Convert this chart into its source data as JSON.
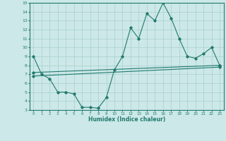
{
  "title": "",
  "xlabel": "Humidex (Indice chaleur)",
  "xlim": [
    -0.5,
    23.5
  ],
  "ylim": [
    3,
    15
  ],
  "xticks": [
    0,
    1,
    2,
    3,
    4,
    5,
    6,
    7,
    8,
    9,
    10,
    11,
    12,
    13,
    14,
    15,
    16,
    17,
    18,
    19,
    20,
    21,
    22,
    23
  ],
  "yticks": [
    3,
    4,
    5,
    6,
    7,
    8,
    9,
    10,
    11,
    12,
    13,
    14,
    15
  ],
  "background_color": "#cce8e8",
  "grid_color": "#aacfcf",
  "line_color": "#217a6e",
  "line1_x": [
    0,
    1,
    2,
    3,
    4,
    5,
    6,
    7,
    8,
    9,
    10,
    11,
    12,
    13,
    14,
    15,
    16,
    17,
    18,
    19,
    20,
    21,
    22,
    23
  ],
  "line1_y": [
    9.0,
    7.0,
    6.5,
    5.0,
    5.0,
    4.8,
    3.3,
    3.3,
    3.2,
    4.4,
    7.5,
    9.0,
    12.2,
    11.0,
    13.8,
    13.0,
    15.0,
    13.3,
    11.0,
    9.0,
    8.8,
    9.3,
    10.0,
    8.0
  ],
  "line2_x": [
    0,
    23
  ],
  "line2_y": [
    7.2,
    8.0
  ],
  "line3_x": [
    0,
    23
  ],
  "line3_y": [
    6.8,
    7.8
  ]
}
